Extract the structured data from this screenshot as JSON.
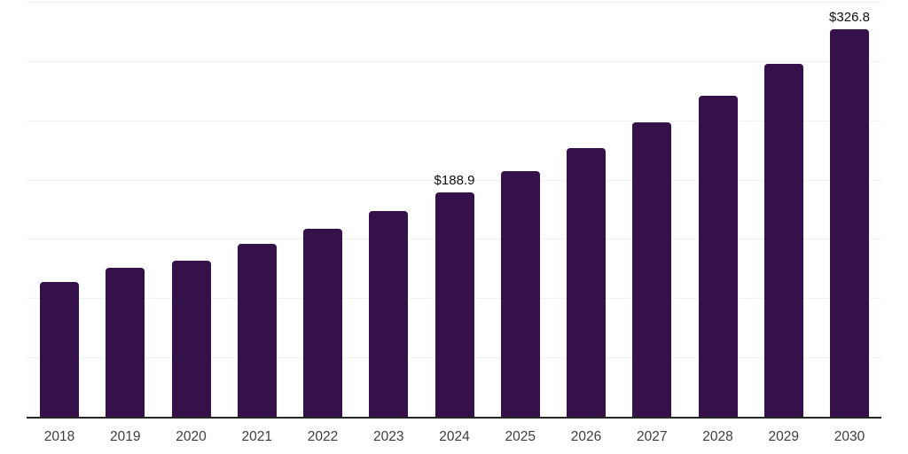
{
  "chart_data": {
    "type": "bar",
    "categories": [
      "2018",
      "2019",
      "2020",
      "2021",
      "2022",
      "2023",
      "2024",
      "2025",
      "2026",
      "2027",
      "2028",
      "2029",
      "2030"
    ],
    "values": [
      114.0,
      125.4,
      131.6,
      145.8,
      158.8,
      173.7,
      188.9,
      207.4,
      226.4,
      248.1,
      271.0,
      297.9,
      326.8
    ],
    "value_labels": [
      {
        "category": "2024",
        "text": "$188.9"
      },
      {
        "category": "2030",
        "text": "$326.8"
      }
    ],
    "ylim": [
      0,
      350
    ],
    "gridline_step": 50,
    "grid": true,
    "legend": false,
    "y_tick_labels_visible": false,
    "bar_color": "#351149",
    "grid_color": "#f1f1f1",
    "axis_color": "#262626",
    "tick_label_color": "#3d3d3d",
    "data_label_color": "#0e0e0e",
    "background_color": "#ffffff"
  }
}
